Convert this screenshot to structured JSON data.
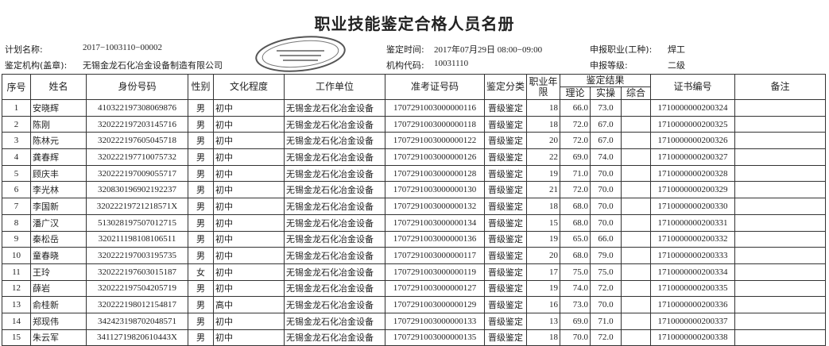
{
  "title": "职业技能鉴定合格人员名册",
  "info": {
    "plan_label": "计划名称:",
    "plan_value": "2017−1003110−00002",
    "org_label": "鉴定机构(盖章):",
    "org_value": "无锡金龙石化冶金设备制造有限公司",
    "time_label": "鉴定时间:",
    "time_value": "2017年07月29日 08:00−09:00",
    "code_label": "机构代码:",
    "code_value": "10031110",
    "job_label": "申报职业(工种):",
    "job_value": "焊工",
    "level_label": "申报等级:",
    "level_value": "二级"
  },
  "stamp": {
    "text_en": "CHEMICAL & METALLURGICAL EQUIPMENT CO.,LTD",
    "text_cn": "无锡金龙石化冶金设备制造有限公司",
    "number": "3202110930986"
  },
  "headers": {
    "seq": "序号",
    "name": "姓名",
    "id": "身份号码",
    "gender": "性别",
    "edu": "文化程度",
    "unit": "工作单位",
    "exam": "准考证号码",
    "type": "鉴定分类",
    "years": "职业年限",
    "result": "鉴定结果",
    "theory": "理论",
    "practice": "实操",
    "overall": "综合",
    "cert": "证书编号",
    "remark": "备注"
  },
  "rows": [
    [
      "1",
      "安晓辉",
      "410322197308069876",
      "男",
      "初中",
      "无锡金龙石化冶金设备",
      "1707291003000000116",
      "晋级鉴定",
      "18",
      "66.0",
      "73.0",
      "",
      "1710000000200324",
      ""
    ],
    [
      "2",
      "陈刚",
      "320222197203145716",
      "男",
      "初中",
      "无锡金龙石化冶金设备",
      "1707291003000000118",
      "晋级鉴定",
      "18",
      "72.0",
      "67.0",
      "",
      "1710000000200325",
      ""
    ],
    [
      "3",
      "陈林元",
      "320222197605045718",
      "男",
      "初中",
      "无锡金龙石化冶金设备",
      "1707291003000000122",
      "晋级鉴定",
      "20",
      "72.0",
      "67.0",
      "",
      "1710000000200326",
      ""
    ],
    [
      "4",
      "龚春辉",
      "320222197710075732",
      "男",
      "初中",
      "无锡金龙石化冶金设备",
      "1707291003000000126",
      "晋级鉴定",
      "22",
      "69.0",
      "74.0",
      "",
      "1710000000200327",
      ""
    ],
    [
      "5",
      "顾庆丰",
      "320222197009055717",
      "男",
      "初中",
      "无锡金龙石化冶金设备",
      "1707291003000000128",
      "晋级鉴定",
      "19",
      "71.0",
      "70.0",
      "",
      "1710000000200328",
      ""
    ],
    [
      "6",
      "李光林",
      "320830196902192237",
      "男",
      "初中",
      "无锡金龙石化冶金设备",
      "1707291003000000130",
      "晋级鉴定",
      "21",
      "72.0",
      "70.0",
      "",
      "1710000000200329",
      ""
    ],
    [
      "7",
      "李国新",
      "32022219721218571X",
      "男",
      "初中",
      "无锡金龙石化冶金设备",
      "1707291003000000132",
      "晋级鉴定",
      "18",
      "68.0",
      "70.0",
      "",
      "1710000000200330",
      ""
    ],
    [
      "8",
      "潘广汉",
      "513028197507012715",
      "男",
      "初中",
      "无锡金龙石化冶金设备",
      "1707291003000000134",
      "晋级鉴定",
      "15",
      "68.0",
      "70.0",
      "",
      "1710000000200331",
      ""
    ],
    [
      "9",
      "秦松岳",
      "320211198108106511",
      "男",
      "初中",
      "无锡金龙石化冶金设备",
      "1707291003000000136",
      "晋级鉴定",
      "19",
      "65.0",
      "66.0",
      "",
      "1710000000200332",
      ""
    ],
    [
      "10",
      "童春晓",
      "320222197003195735",
      "男",
      "初中",
      "无锡金龙石化冶金设备",
      "1707291003000000117",
      "晋级鉴定",
      "20",
      "68.0",
      "79.0",
      "",
      "1710000000200333",
      ""
    ],
    [
      "11",
      "王玲",
      "320222197603015187",
      "女",
      "初中",
      "无锡金龙石化冶金设备",
      "1707291003000000119",
      "晋级鉴定",
      "17",
      "75.0",
      "75.0",
      "",
      "1710000000200334",
      ""
    ],
    [
      "12",
      "薛岩",
      "320222197504205719",
      "男",
      "初中",
      "无锡金龙石化冶金设备",
      "1707291003000000127",
      "晋级鉴定",
      "19",
      "74.0",
      "72.0",
      "",
      "1710000000200335",
      ""
    ],
    [
      "13",
      "俞桂新",
      "320222198012154817",
      "男",
      "高中",
      "无锡金龙石化冶金设备",
      "1707291003000000129",
      "晋级鉴定",
      "16",
      "73.0",
      "70.0",
      "",
      "1710000000200336",
      ""
    ],
    [
      "14",
      "郑现伟",
      "342423198702048571",
      "男",
      "初中",
      "无锡金龙石化冶金设备",
      "1707291003000000133",
      "晋级鉴定",
      "13",
      "69.0",
      "71.0",
      "",
      "1710000000200337",
      ""
    ],
    [
      "15",
      "朱云军",
      "34112719820610443X",
      "男",
      "初中",
      "无锡金龙石化冶金设备",
      "1707291003000000135",
      "晋级鉴定",
      "18",
      "70.0",
      "72.0",
      "",
      "1710000000200338",
      ""
    ]
  ]
}
